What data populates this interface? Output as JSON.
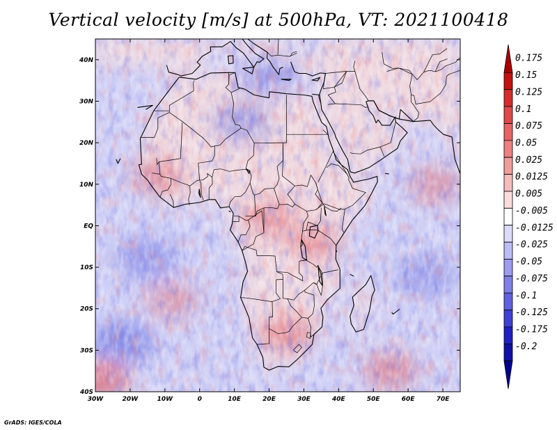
{
  "title": "Vertical velocity [m/s] at 500hPa, VT: 2021100418",
  "footer": "GrADS: IGES/COLA",
  "map": {
    "lon_range": [
      -30,
      75
    ],
    "lat_range": [
      -40,
      45
    ],
    "lon_ticks": [
      {
        "value": -30,
        "label": "30W"
      },
      {
        "value": -20,
        "label": "20W"
      },
      {
        "value": -10,
        "label": "10W"
      },
      {
        "value": 0,
        "label": "0"
      },
      {
        "value": 10,
        "label": "10E"
      },
      {
        "value": 20,
        "label": "20E"
      },
      {
        "value": 30,
        "label": "30E"
      },
      {
        "value": 40,
        "label": "40E"
      },
      {
        "value": 50,
        "label": "50E"
      },
      {
        "value": 60,
        "label": "60E"
      },
      {
        "value": 70,
        "label": "70E"
      }
    ],
    "lat_ticks": [
      {
        "value": 40,
        "label": "40N"
      },
      {
        "value": 30,
        "label": "30N"
      },
      {
        "value": 20,
        "label": "20N"
      },
      {
        "value": 10,
        "label": "10N"
      },
      {
        "value": 0,
        "label": "EQ"
      },
      {
        "value": -10,
        "label": "10S"
      },
      {
        "value": -20,
        "label": "20S"
      },
      {
        "value": -30,
        "label": "30S"
      },
      {
        "value": -40,
        "label": "40S"
      }
    ]
  },
  "colorbar": {
    "labels": [
      "0.175",
      "0.15",
      "0.125",
      "0.1",
      "0.075",
      "0.05",
      "0.025",
      "0.0125",
      "0.005",
      "-0.005",
      "-0.0125",
      "-0.025",
      "-0.05",
      "-0.075",
      "-0.1",
      "-0.125",
      "-0.175",
      "-0.2"
    ],
    "colors": [
      "#a80000",
      "#c41010",
      "#d42c2c",
      "#e04848",
      "#e86464",
      "#ee8080",
      "#f29c9c",
      "#f6bcbc",
      "#fadcdc",
      "#ffffff",
      "#dcdcfa",
      "#bcbcf6",
      "#9c9cf0",
      "#8080ea",
      "#6060e2",
      "#4040d6",
      "#2020c4",
      "#1010a8",
      "#000090"
    ]
  },
  "fields": {
    "ocean_base": "#cfd0f6",
    "land_base": "#f4d9da",
    "updraft_patches": [
      {
        "name": "sahel-west",
        "lon": -12,
        "lat": 12,
        "strength": 0.6
      },
      {
        "name": "congo-basin",
        "lon": 20,
        "lat": 2,
        "strength": 0.7
      },
      {
        "name": "east-africa",
        "lon": 33,
        "lat": -4,
        "strength": 0.6
      },
      {
        "name": "southeast-atlantic",
        "lon": -8,
        "lat": -18,
        "strength": 0.4
      },
      {
        "name": "southern-africa",
        "lon": 25,
        "lat": -26,
        "strength": 0.8
      },
      {
        "name": "indian-ocean-south",
        "lon": 55,
        "lat": -35,
        "strength": 0.7
      },
      {
        "name": "southwest-corner",
        "lon": -28,
        "lat": -37,
        "strength": 1.0
      },
      {
        "name": "arabian-sea",
        "lon": 68,
        "lat": 10,
        "strength": 0.5
      }
    ],
    "downdraft_patches": [
      {
        "name": "south-atlantic",
        "lon": -15,
        "lat": -8,
        "strength": 0.6
      },
      {
        "name": "atlantic-sw",
        "lon": -22,
        "lat": -28,
        "strength": 0.9
      },
      {
        "name": "sahara-central",
        "lon": 12,
        "lat": 25,
        "strength": 0.5
      },
      {
        "name": "mediterranean-south",
        "lon": 20,
        "lat": 36,
        "strength": 0.5
      },
      {
        "name": "indian-ocean-central",
        "lon": 65,
        "lat": -12,
        "strength": 0.4
      }
    ]
  }
}
